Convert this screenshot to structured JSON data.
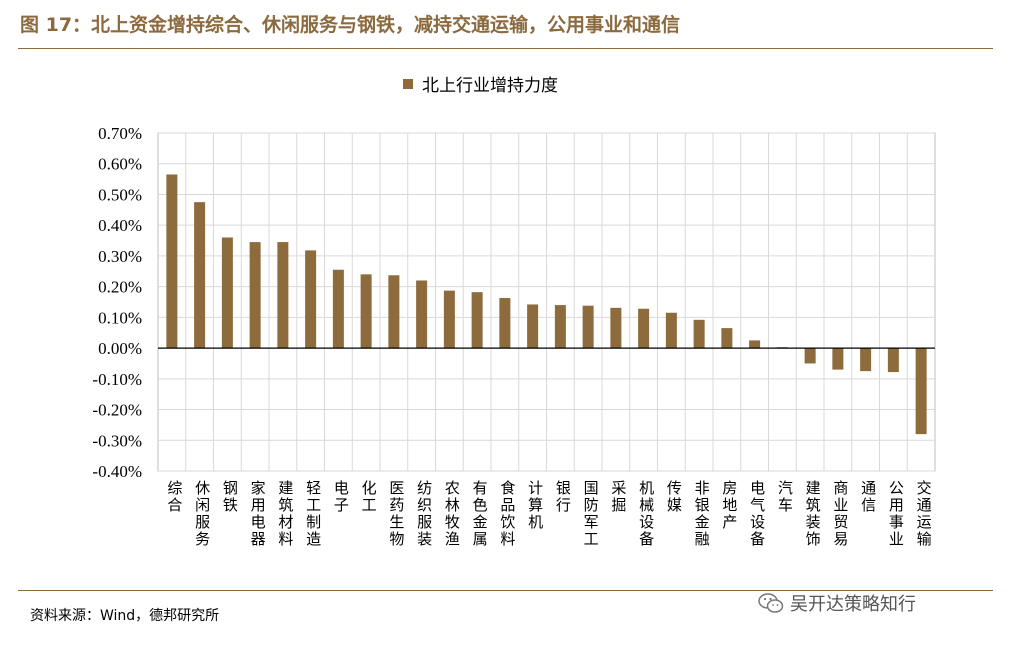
{
  "figure": {
    "title": "图 17：北上资金增持综合、休闲服务与钢铁，减持交通运输，公用事业和通信",
    "source": "资料来源：Wind，德邦研究所",
    "watermark": "吴开达策略知行"
  },
  "colors": {
    "accent": "#8c6a3f",
    "bar": "#8d6b3d",
    "grid": "#d9d9d9"
  },
  "chart_data": {
    "type": "bar",
    "legend": "北上行业增持力度",
    "legend_position": "top-center",
    "grid": true,
    "ylim": [
      -0.004,
      0.007
    ],
    "ytick_labels": [
      "0.70%",
      "0.60%",
      "0.50%",
      "0.40%",
      "0.30%",
      "0.20%",
      "0.10%",
      "0.00%",
      "-0.10%",
      "-0.20%",
      "-0.30%",
      "-0.40%"
    ],
    "categories": [
      "综合",
      "休闲服务",
      "钢铁",
      "家用电器",
      "建筑材料",
      "轻工制造",
      "电子",
      "化工",
      "医药生物",
      "纺织服装",
      "农林牧渔",
      "有色金属",
      "食品饮料",
      "计算机",
      "银行",
      "国防军工",
      "采掘",
      "机械设备",
      "传媒",
      "非银金融",
      "房地产",
      "电气设备",
      "汽车",
      "建筑装饰",
      "商业贸易",
      "通信",
      "公用事业",
      "交通运输"
    ],
    "series": [
      {
        "name": "北上行业增持力度",
        "values": [
          0.00565,
          0.00475,
          0.0036,
          0.00345,
          0.00345,
          0.00318,
          0.00255,
          0.0024,
          0.00237,
          0.0022,
          0.00187,
          0.00182,
          0.00163,
          0.00142,
          0.0014,
          0.00138,
          0.00131,
          0.00128,
          0.00115,
          0.00092,
          0.00065,
          0.00025,
          3e-05,
          -0.0005,
          -0.0007,
          -0.00075,
          -0.00078,
          -0.0028
        ]
      }
    ]
  }
}
